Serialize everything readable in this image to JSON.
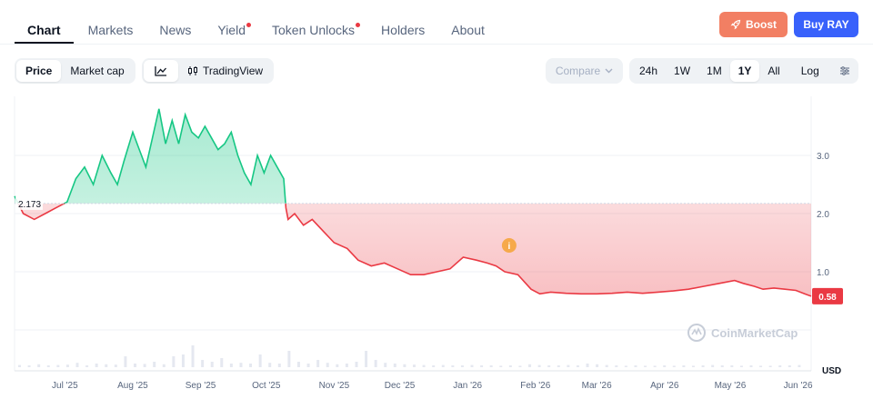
{
  "tabs": [
    {
      "label": "Chart",
      "active": true,
      "dot": false
    },
    {
      "label": "Markets",
      "active": false,
      "dot": false
    },
    {
      "label": "News",
      "active": false,
      "dot": false
    },
    {
      "label": "Yield",
      "active": false,
      "dot": true
    },
    {
      "label": "Token Unlocks",
      "active": false,
      "dot": true
    },
    {
      "label": "Holders",
      "active": false,
      "dot": false
    },
    {
      "label": "About",
      "active": false,
      "dot": false
    }
  ],
  "actions": {
    "boost_label": "Boost",
    "buy_label": "Buy RAY"
  },
  "toolbar": {
    "price_label": "Price",
    "marketcap_label": "Market cap",
    "tradingview_label": "TradingView",
    "compare_label": "Compare",
    "ranges": [
      "24h",
      "1W",
      "1M",
      "1Y",
      "All"
    ],
    "active_range": "1Y",
    "log_label": "Log"
  },
  "colors": {
    "up": "#16c784",
    "down": "#ea3943",
    "accent": "#3861fb",
    "boost": "#f27f63"
  },
  "chart_data": {
    "type": "area",
    "baseline": 2.173,
    "baseline_label": "2.173",
    "current_label": "0.58",
    "y_ticks": [
      "3.0",
      "2.0",
      "1.0"
    ],
    "y_tick_values": [
      3.0,
      2.0,
      1.0
    ],
    "ylim": [
      0.0,
      4.0
    ],
    "currency_label": "USD",
    "x_tick_labels": [
      "Jul '25",
      "Aug '25",
      "Sep '25",
      "Oct '25",
      "Nov '25",
      "Dec '25",
      "Jan '26",
      "Feb '26",
      "Mar '26",
      "Apr '26",
      "May '26",
      "Jun '26"
    ],
    "x_range": [
      "2025-06-08",
      "2026-06-07"
    ],
    "x": [
      "2025-06-08",
      "2025-06-12",
      "2025-06-17",
      "2025-06-22",
      "2025-06-27",
      "2025-07-02",
      "2025-07-06",
      "2025-07-10",
      "2025-07-14",
      "2025-07-18",
      "2025-07-22",
      "2025-07-25",
      "2025-07-28",
      "2025-08-01",
      "2025-08-04",
      "2025-08-07",
      "2025-08-10",
      "2025-08-13",
      "2025-08-16",
      "2025-08-19",
      "2025-08-22",
      "2025-08-25",
      "2025-08-28",
      "2025-08-31",
      "2025-09-03",
      "2025-09-06",
      "2025-09-09",
      "2025-09-12",
      "2025-09-15",
      "2025-09-18",
      "2025-09-21",
      "2025-09-24",
      "2025-09-27",
      "2025-09-30",
      "2025-10-03",
      "2025-10-06",
      "2025-10-09",
      "2025-10-10",
      "2025-10-11",
      "2025-10-14",
      "2025-10-18",
      "2025-10-22",
      "2025-10-27",
      "2025-11-01",
      "2025-11-07",
      "2025-11-12",
      "2025-11-18",
      "2025-11-24",
      "2025-11-30",
      "2025-12-06",
      "2025-12-12",
      "2025-12-18",
      "2025-12-24",
      "2025-12-30",
      "2026-01-05",
      "2026-01-10",
      "2026-01-14",
      "2026-01-18",
      "2026-01-24",
      "2026-01-30",
      "2026-02-03",
      "2026-02-08",
      "2026-02-15",
      "2026-02-22",
      "2026-03-01",
      "2026-03-08",
      "2026-03-15",
      "2026-03-22",
      "2026-03-29",
      "2026-04-05",
      "2026-04-12",
      "2026-04-19",
      "2026-04-26",
      "2026-05-03",
      "2026-05-07",
      "2026-05-12",
      "2026-05-16",
      "2026-05-21",
      "2026-05-26",
      "2026-05-31",
      "2026-06-04",
      "2026-06-07"
    ],
    "series": [
      {
        "values": [
          2.3,
          2.0,
          1.9,
          2.0,
          2.1,
          2.2,
          2.6,
          2.8,
          2.5,
          3.0,
          2.7,
          2.5,
          2.9,
          3.4,
          3.1,
          2.8,
          3.3,
          3.8,
          3.2,
          3.6,
          3.2,
          3.7,
          3.4,
          3.3,
          3.5,
          3.3,
          3.1,
          3.2,
          3.4,
          3.0,
          2.7,
          2.5,
          3.0,
          2.7,
          3.0,
          2.8,
          2.6,
          2.1,
          1.9,
          2.0,
          1.8,
          1.9,
          1.7,
          1.5,
          1.4,
          1.2,
          1.1,
          1.15,
          1.05,
          0.95,
          0.95,
          1.0,
          1.05,
          1.25,
          1.2,
          1.15,
          1.1,
          1.0,
          0.95,
          0.7,
          0.62,
          0.65,
          0.63,
          0.62,
          0.62,
          0.63,
          0.65,
          0.63,
          0.65,
          0.67,
          0.7,
          0.75,
          0.8,
          0.85,
          0.8,
          0.75,
          0.7,
          0.72,
          0.7,
          0.68,
          0.62,
          0.58
        ]
      }
    ],
    "info_marker_date": "2026-01-20",
    "volume": [
      0.06,
      0.05,
      0.08,
      0.05,
      0.06,
      0.07,
      0.12,
      0.05,
      0.1,
      0.08,
      0.07,
      0.3,
      0.1,
      0.09,
      0.15,
      0.08,
      0.3,
      0.35,
      0.6,
      0.2,
      0.15,
      0.25,
      0.1,
      0.12,
      0.1,
      0.35,
      0.12,
      0.1,
      0.45,
      0.15,
      0.1,
      0.2,
      0.12,
      0.08,
      0.1,
      0.15,
      0.45,
      0.2,
      0.12,
      0.1,
      0.08,
      0.07,
      0.06,
      0.05,
      0.06,
      0.05,
      0.05,
      0.06,
      0.05,
      0.05,
      0.04,
      0.05,
      0.04,
      0.08,
      0.06,
      0.05,
      0.05,
      0.06,
      0.05,
      0.1,
      0.08,
      0.06,
      0.05,
      0.04,
      0.05,
      0.04,
      0.04,
      0.05,
      0.04,
      0.05,
      0.04,
      0.05,
      0.06,
      0.05,
      0.05,
      0.04,
      0.05,
      0.04,
      0.04,
      0.05,
      0.05,
      0.06
    ],
    "watermark": "CoinMarketCap"
  }
}
